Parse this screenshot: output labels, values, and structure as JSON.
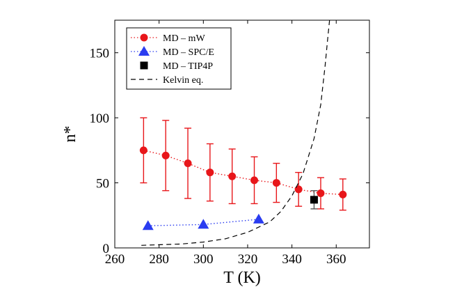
{
  "chart_data": {
    "type": "scatter",
    "xlabel": "T  (K)",
    "ylabel": "n*",
    "xlim": [
      260,
      375
    ],
    "ylim": [
      0,
      175
    ],
    "xticks": [
      260,
      280,
      300,
      320,
      340,
      360
    ],
    "yticks": [
      0,
      50,
      100,
      150
    ],
    "grid": false,
    "legend_position": "top-left",
    "series": [
      {
        "name": "MD – mW",
        "marker": "circle",
        "line": "dotted",
        "color": "#e8161a",
        "points": [
          {
            "x": 273,
            "y": 75,
            "ylow": 50,
            "yhigh": 100
          },
          {
            "x": 283,
            "y": 71,
            "ylow": 44,
            "yhigh": 98
          },
          {
            "x": 293,
            "y": 65,
            "ylow": 38,
            "yhigh": 92
          },
          {
            "x": 303,
            "y": 58,
            "ylow": 36,
            "yhigh": 80
          },
          {
            "x": 313,
            "y": 55,
            "ylow": 34,
            "yhigh": 76
          },
          {
            "x": 323,
            "y": 52,
            "ylow": 34,
            "yhigh": 70
          },
          {
            "x": 333,
            "y": 50,
            "ylow": 35,
            "yhigh": 65
          },
          {
            "x": 343,
            "y": 45,
            "ylow": 32,
            "yhigh": 58
          },
          {
            "x": 353,
            "y": 42,
            "ylow": 30,
            "yhigh": 54
          },
          {
            "x": 363,
            "y": 41,
            "ylow": 29,
            "yhigh": 53
          }
        ]
      },
      {
        "name": "MD – SPC/E",
        "marker": "triangle",
        "line": "dotted",
        "color": "#2a3cf0",
        "points": [
          {
            "x": 275,
            "y": 17
          },
          {
            "x": 300,
            "y": 18
          },
          {
            "x": 325,
            "y": 22
          }
        ]
      },
      {
        "name": "MD – TIP4P",
        "marker": "square",
        "line": "none",
        "color": "#000000",
        "points": [
          {
            "x": 350,
            "y": 37,
            "ylow": 30,
            "yhigh": 44
          }
        ]
      },
      {
        "name": "Kelvin eq.",
        "marker": "none",
        "line": "dashed",
        "color": "#000000",
        "points": [
          {
            "x": 272,
            "y": 2
          },
          {
            "x": 290,
            "y": 3
          },
          {
            "x": 300,
            "y": 4.5
          },
          {
            "x": 310,
            "y": 7
          },
          {
            "x": 320,
            "y": 12
          },
          {
            "x": 330,
            "y": 20
          },
          {
            "x": 335,
            "y": 28
          },
          {
            "x": 340,
            "y": 40
          },
          {
            "x": 345,
            "y": 57
          },
          {
            "x": 350,
            "y": 84
          },
          {
            "x": 353,
            "y": 110
          },
          {
            "x": 355,
            "y": 140
          },
          {
            "x": 356,
            "y": 158
          },
          {
            "x": 357,
            "y": 175
          }
        ]
      }
    ]
  }
}
